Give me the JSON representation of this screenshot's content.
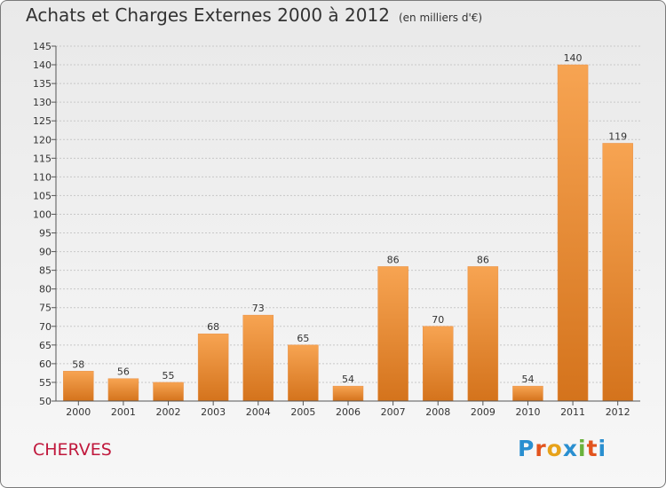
{
  "chart_data": {
    "type": "bar",
    "title": "Achats et Charges Externes 2000 à 2012",
    "unit": "(en milliers d'€)",
    "categories": [
      "2000",
      "2001",
      "2002",
      "2003",
      "2004",
      "2005",
      "2006",
      "2007",
      "2008",
      "2009",
      "2010",
      "2011",
      "2012"
    ],
    "values": [
      58,
      56,
      55,
      68,
      73,
      65,
      54,
      86,
      70,
      86,
      54,
      140,
      119
    ],
    "ylim": [
      50,
      145
    ],
    "yticks": [
      50,
      55,
      60,
      65,
      70,
      75,
      80,
      85,
      90,
      95,
      100,
      105,
      110,
      115,
      120,
      125,
      130,
      135,
      140,
      145
    ],
    "grid": true,
    "colors": {
      "bar_light": "#f7a452",
      "bar_dark": "#d4731c"
    }
  },
  "footer": {
    "place": "CHERVES",
    "brand": "Proxiti",
    "brand_colors": [
      "#2a8fd0",
      "#e2541e",
      "#e7a21a",
      "#2a8fd0",
      "#6ab23c",
      "#e2541e",
      "#2a8fd0"
    ]
  }
}
